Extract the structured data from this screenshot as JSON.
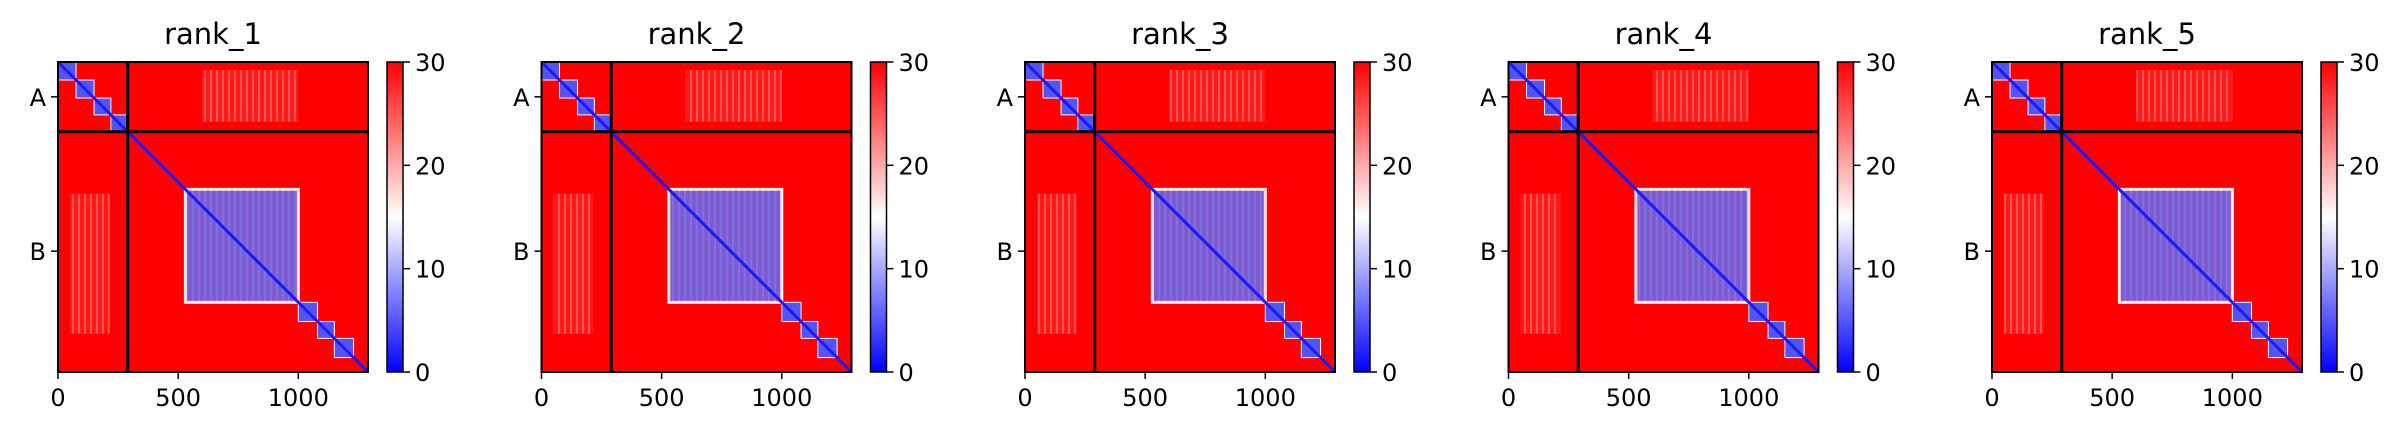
{
  "chart_data": [
    {
      "type": "heatmap",
      "title": "rank_1",
      "xlabel": "",
      "ylabel": "",
      "xlim": [
        0,
        1290
      ],
      "ylim": [
        1290,
        0
      ],
      "x_ticks": [
        0,
        500,
        1000
      ],
      "y_tick_labels": [
        {
          "label": "A",
          "value": 145
        },
        {
          "label": "B",
          "value": 787
        }
      ],
      "chain_boundary": 290,
      "colorbar": {
        "min": 0,
        "max": 30,
        "ticks": [
          0,
          10,
          20,
          30
        ],
        "colormap": "bwr"
      },
      "blue_blocks": [
        [
          0,
          75
        ],
        [
          75,
          150
        ],
        [
          150,
          220
        ],
        [
          220,
          290
        ],
        [
          530,
          1000
        ],
        [
          1000,
          1080
        ],
        [
          1080,
          1150
        ],
        [
          1150,
          1230
        ]
      ]
    },
    {
      "type": "heatmap",
      "title": "rank_2",
      "xlabel": "",
      "ylabel": "",
      "xlim": [
        0,
        1290
      ],
      "ylim": [
        1290,
        0
      ],
      "x_ticks": [
        0,
        500,
        1000
      ],
      "y_tick_labels": [
        {
          "label": "A",
          "value": 145
        },
        {
          "label": "B",
          "value": 787
        }
      ],
      "chain_boundary": 290,
      "colorbar": {
        "min": 0,
        "max": 30,
        "ticks": [
          0,
          10,
          20,
          30
        ],
        "colormap": "bwr"
      },
      "blue_blocks": [
        [
          0,
          75
        ],
        [
          75,
          150
        ],
        [
          150,
          220
        ],
        [
          220,
          290
        ],
        [
          530,
          1000
        ],
        [
          1000,
          1080
        ],
        [
          1080,
          1150
        ],
        [
          1150,
          1230
        ]
      ]
    },
    {
      "type": "heatmap",
      "title": "rank_3",
      "xlabel": "",
      "ylabel": "",
      "xlim": [
        0,
        1290
      ],
      "ylim": [
        1290,
        0
      ],
      "x_ticks": [
        0,
        500,
        1000
      ],
      "y_tick_labels": [
        {
          "label": "A",
          "value": 145
        },
        {
          "label": "B",
          "value": 787
        }
      ],
      "chain_boundary": 290,
      "colorbar": {
        "min": 0,
        "max": 30,
        "ticks": [
          0,
          10,
          20,
          30
        ],
        "colormap": "bwr"
      },
      "blue_blocks": [
        [
          0,
          75
        ],
        [
          75,
          150
        ],
        [
          150,
          220
        ],
        [
          220,
          290
        ],
        [
          530,
          1000
        ],
        [
          1000,
          1080
        ],
        [
          1080,
          1150
        ],
        [
          1150,
          1230
        ]
      ]
    },
    {
      "type": "heatmap",
      "title": "rank_4",
      "xlabel": "",
      "ylabel": "",
      "xlim": [
        0,
        1290
      ],
      "ylim": [
        1290,
        0
      ],
      "x_ticks": [
        0,
        500,
        1000
      ],
      "y_tick_labels": [
        {
          "label": "A",
          "value": 145
        },
        {
          "label": "B",
          "value": 787
        }
      ],
      "chain_boundary": 290,
      "colorbar": {
        "min": 0,
        "max": 30,
        "ticks": [
          0,
          10,
          20,
          30
        ],
        "colormap": "bwr"
      },
      "blue_blocks": [
        [
          0,
          75
        ],
        [
          75,
          150
        ],
        [
          150,
          220
        ],
        [
          220,
          290
        ],
        [
          530,
          1000
        ],
        [
          1000,
          1080
        ],
        [
          1080,
          1150
        ],
        [
          1150,
          1230
        ]
      ]
    },
    {
      "type": "heatmap",
      "title": "rank_5",
      "xlabel": "",
      "ylabel": "",
      "xlim": [
        0,
        1290
      ],
      "ylim": [
        1290,
        0
      ],
      "x_ticks": [
        0,
        500,
        1000
      ],
      "y_tick_labels": [
        {
          "label": "A",
          "value": 145
        },
        {
          "label": "B",
          "value": 787
        }
      ],
      "chain_boundary": 290,
      "colorbar": {
        "min": 0,
        "max": 30,
        "ticks": [
          0,
          10,
          20,
          30
        ],
        "colormap": "bwr"
      },
      "blue_blocks": [
        [
          0,
          75
        ],
        [
          75,
          150
        ],
        [
          150,
          220
        ],
        [
          220,
          290
        ],
        [
          530,
          1000
        ],
        [
          1000,
          1080
        ],
        [
          1080,
          1150
        ],
        [
          1150,
          1230
        ]
      ]
    }
  ],
  "colors": {
    "high": "#ff0000",
    "mid": "#ffffff",
    "low": "#0000ff",
    "boundary": "#000000"
  }
}
